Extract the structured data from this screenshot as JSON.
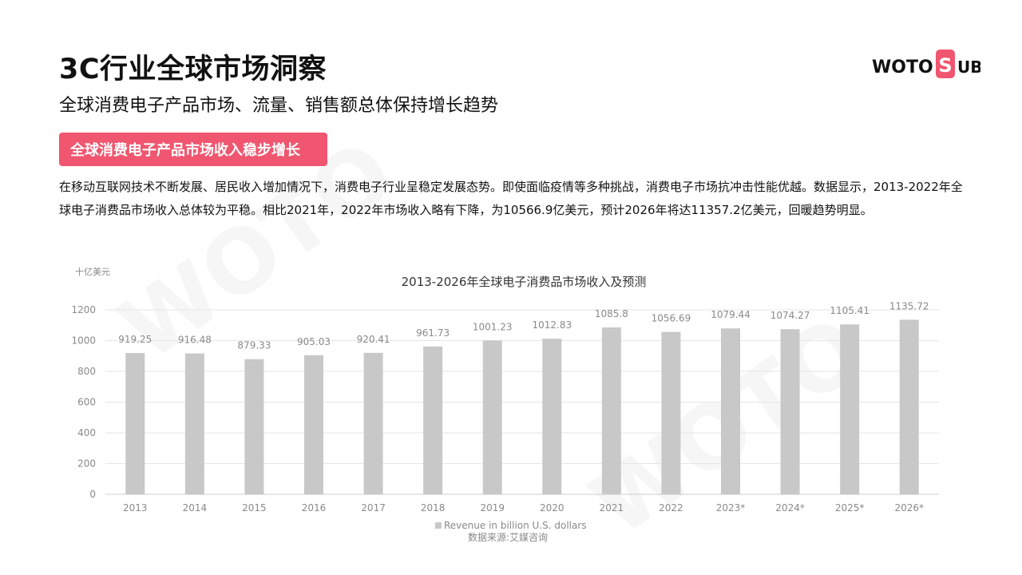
{
  "header": {
    "title": "3C行业全球市场洞察",
    "subtitle": "全球消费电子产品市场、流量、销售额总体保持增长趋势",
    "logo": {
      "text_left": "WOTO",
      "text_right": "UB",
      "accent": "#f0566f"
    }
  },
  "section": {
    "badge": "全球消费电子产品市场收入稳步增长",
    "badge_color": "#f0566f",
    "body": "在移动互联网技术不断发展、居民收入增加情况下，消费电子行业呈稳定发展态势。即使面临疫情等多种挑战，消费电子市场抗冲击性能优越。数据显示，2013-2022年全球电子消费品市场收入总体较为平稳。相比2021年，2022年市场收入略有下降，为10566.9亿美元，预计2026年将达11357.2亿美元，回暖趋势明显。"
  },
  "chart_data": {
    "type": "bar",
    "title": "2013-2026年全球电子消费品市场收入及预测",
    "unit_label": "十亿美元",
    "categories": [
      "2013",
      "2014",
      "2015",
      "2016",
      "2017",
      "2018",
      "2019",
      "2020",
      "2021",
      "2022",
      "2023*",
      "2024*",
      "2025*",
      "2026*"
    ],
    "values": [
      919.25,
      916.48,
      879.33,
      905.03,
      920.41,
      961.73,
      1001.23,
      1012.83,
      1085.8,
      1056.69,
      1079.44,
      1074.27,
      1105.41,
      1135.72
    ],
    "value_labels": [
      "919.25",
      "916.48",
      "879.33",
      "905.03",
      "920.41",
      "961.73",
      "1001.23",
      "1012.83",
      "1085.8",
      "1056.69",
      "1079.44",
      "1074.27",
      "1105.41",
      "1135.72"
    ],
    "yticks": [
      0,
      200,
      400,
      600,
      800,
      1000,
      1200
    ],
    "ylim": [
      0,
      1200
    ],
    "legend": "Revenue in billion U.S. dollars",
    "legend_placement": "bottom",
    "source": "数据来源:艾媒咨询",
    "grid": true,
    "bar_color": "#c8c8c8"
  }
}
